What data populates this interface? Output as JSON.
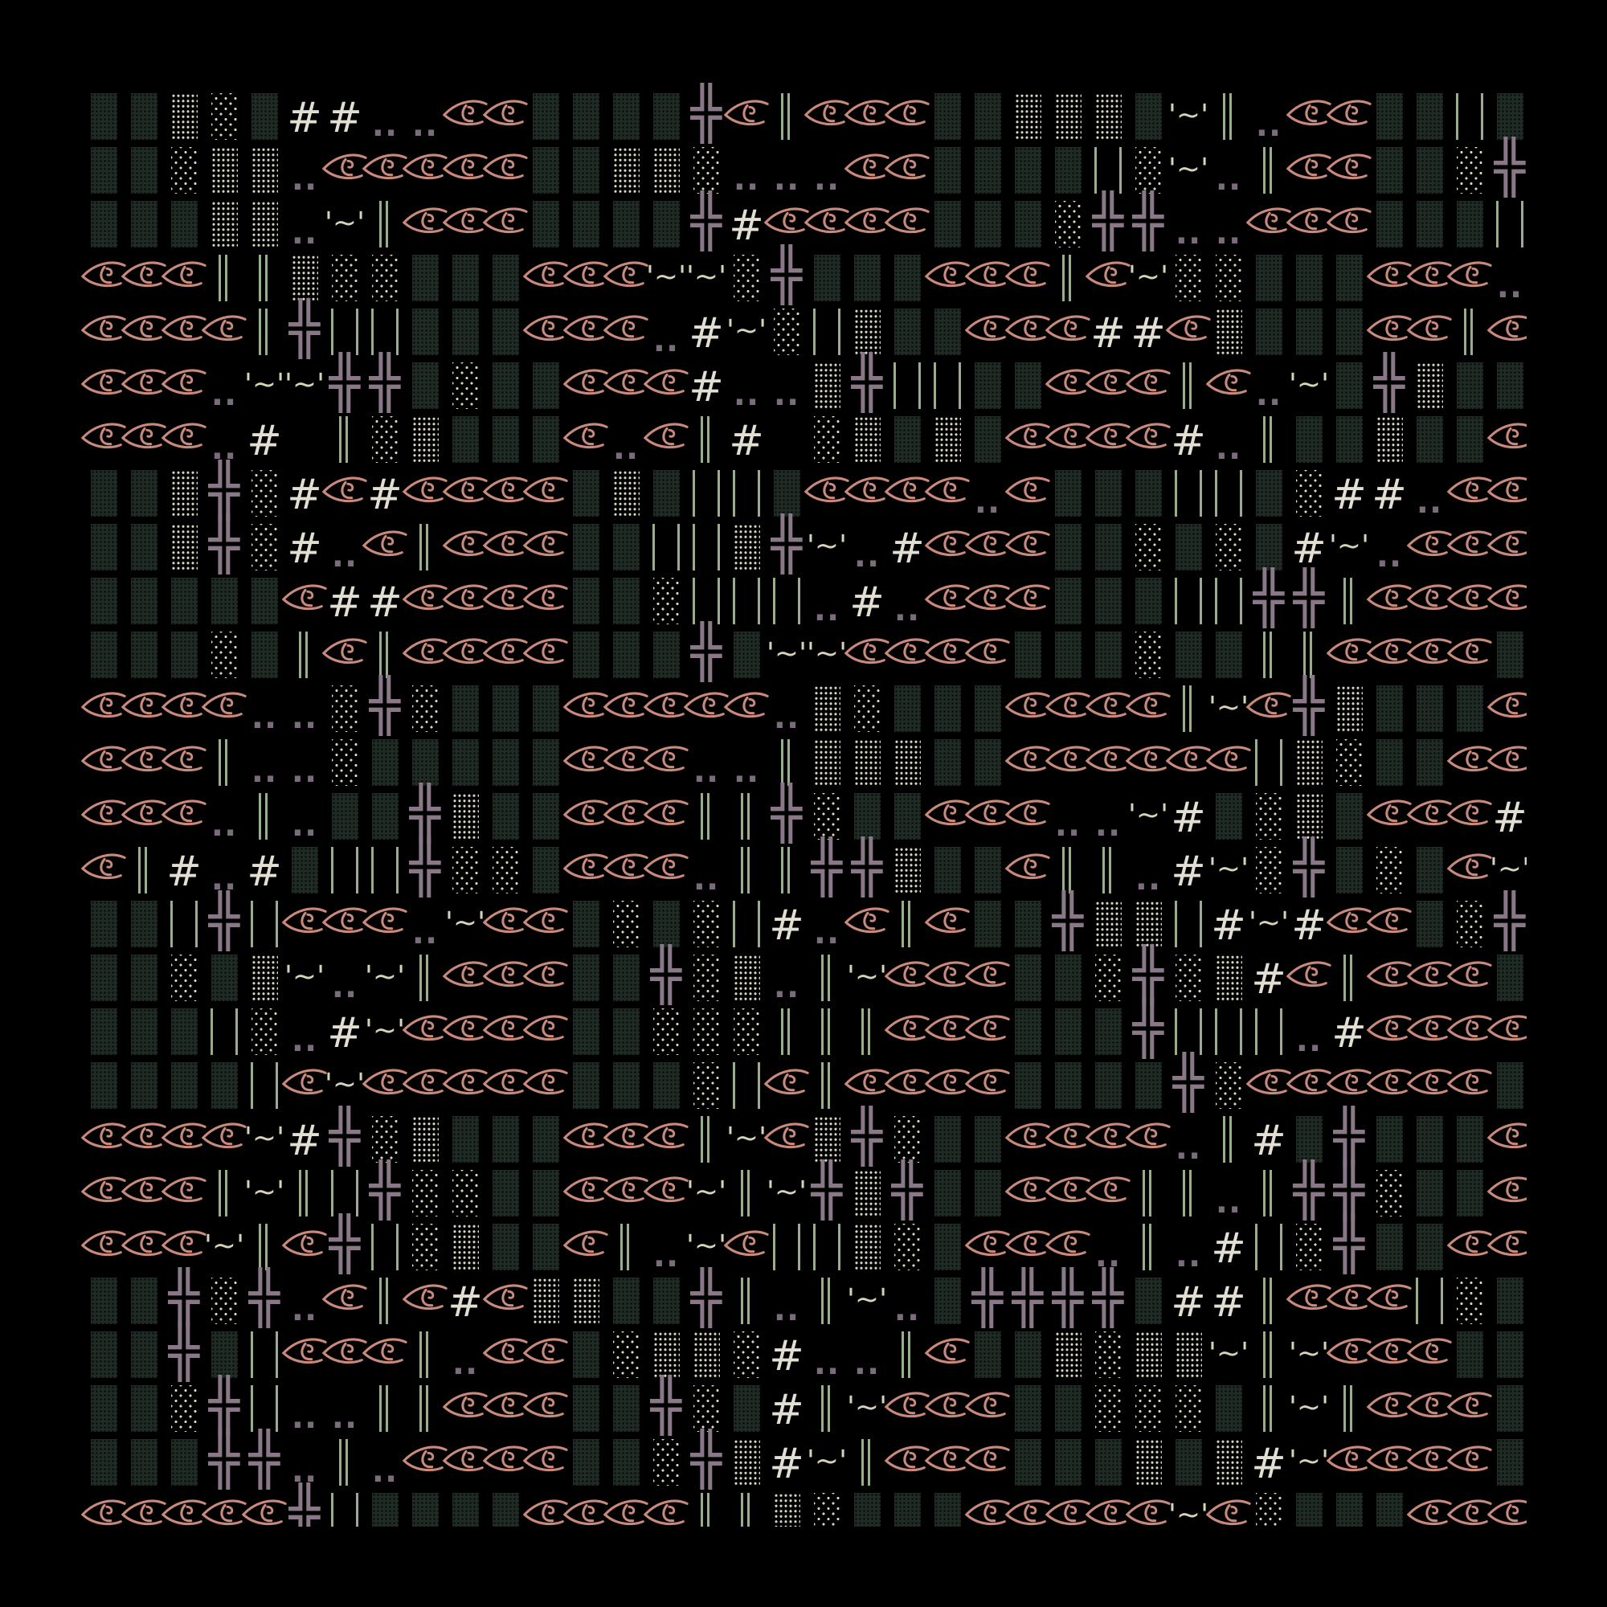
{
  "colors": {
    "background": "#000000",
    "block_dark": "#1f2b24",
    "dots_cream": "#d8d6bd",
    "eye": "#c98a7c",
    "hash": "#e2ded2",
    "double_dots": "#7b6b7c",
    "bars_green": "#9aab8e",
    "cross_purple": "#8a7889"
  },
  "glyphs": {
    "#": "#",
    ".": "..",
    "T": "'~'",
    "P": "╬"
  },
  "legend": {
    "B": "dark-shade-block",
    "M": "dense-dot-block",
    "L": "sparse-dot-block",
    "#": "hash",
    ".": "double-dot",
    "T": "quote-tilde",
    "D": "double-bar",
    "I": "wide-bars",
    "P": "cross",
    "E": "eye-icon",
    "_": "blank"
  },
  "rows": [
    "BBMLB##..EEBBBBPEDEEEBBMMMBTD.EEBBIB",
    "BBLMM.EEEEEBBMML...EEBBBBILT.DEEBBLP",
    "BBBMM.TDEEEBBBBP#EEEEBBBLPP..EEEBBBI",
    "EEEDDMLLBBBEEETTLPBBBEEEDETLLBBBEEE.",
    "EEEEDPIIBBBEEE.#TLIMBBEEE##EMBBBEEDE",
    "EEE.TTPPBLBBEEE#..MPIIBBEEEDE.TBPMBB",
    "EEE.#_DLMBBBE.ED#_LMBMBEEEE#.DBBMBBE",
    "BBMPL#E#EEEEBMBIIBEEEE.EBBBIIBL##.EE",
    "BBMPL#.EDEEEBBIIMPT.#EEEBBLBLB#T.EEE",
    "BBBBBE##EEEEBBLIII.#.EEEBBBIIPPDEEEE",
    "BBBLBDEDEEEEBBBPBTTEEEEBBBLBBDDEEEEB",
    "EEEE..LPLBBBEEEEE.MLBBBEEEEDTEPMBBBE",
    "EEED..LBBBBBEEE..DMMMBBEEEEEEIMLBBEE",
    "EEE.D.BBPMBBEEEDDPLBBEEE..T#BLMBEEE#",
    "ED#.#BIIPLLBEEE.DDPPMBBEDD.#TLPBLBET",
    "BBIPIEEE.TEEBLBLI#.EDEBBPMMI#T#EEBLP",
    "BBLBMT.TDEEEBBPLM.DTEEEBBLPLM#EDEEEB",
    "BBBIL.#TEEEEBBLLLDDDEEEBBBPIII.#EEEE",
    "BBBBIETEEEEEBBBLIEDEEEEBBBBPLEEEEEEB",
    "EEEET#PLMBBBEEEDTEMPLBBEEEE.D#BPBBBE",
    "EEEDTDIPLLBBEEETDTPMPBBEEEDD.DPPLBBE",
    "EEETDEPILMBBED.TEIIMLBEEE.D.#ILPBBEE",
    "BBPLP.EDE#EMMBBPD.DT.BPPPPB##DEEEILB",
    "BBPBIEEED.EEBLMML#..DEBBMLMMTDTEEEBB",
    "BBLPI..DDEEEBBPLB#DTEEEBBLLLBDTDEEEB",
    "BBBPP.D.EEEEBBLPM#TDEEEBBBMBM#TEEEEB",
    "EEEEEPIBBBBEEEEDDMLBBBEEEEETELBBBEEE"
  ]
}
